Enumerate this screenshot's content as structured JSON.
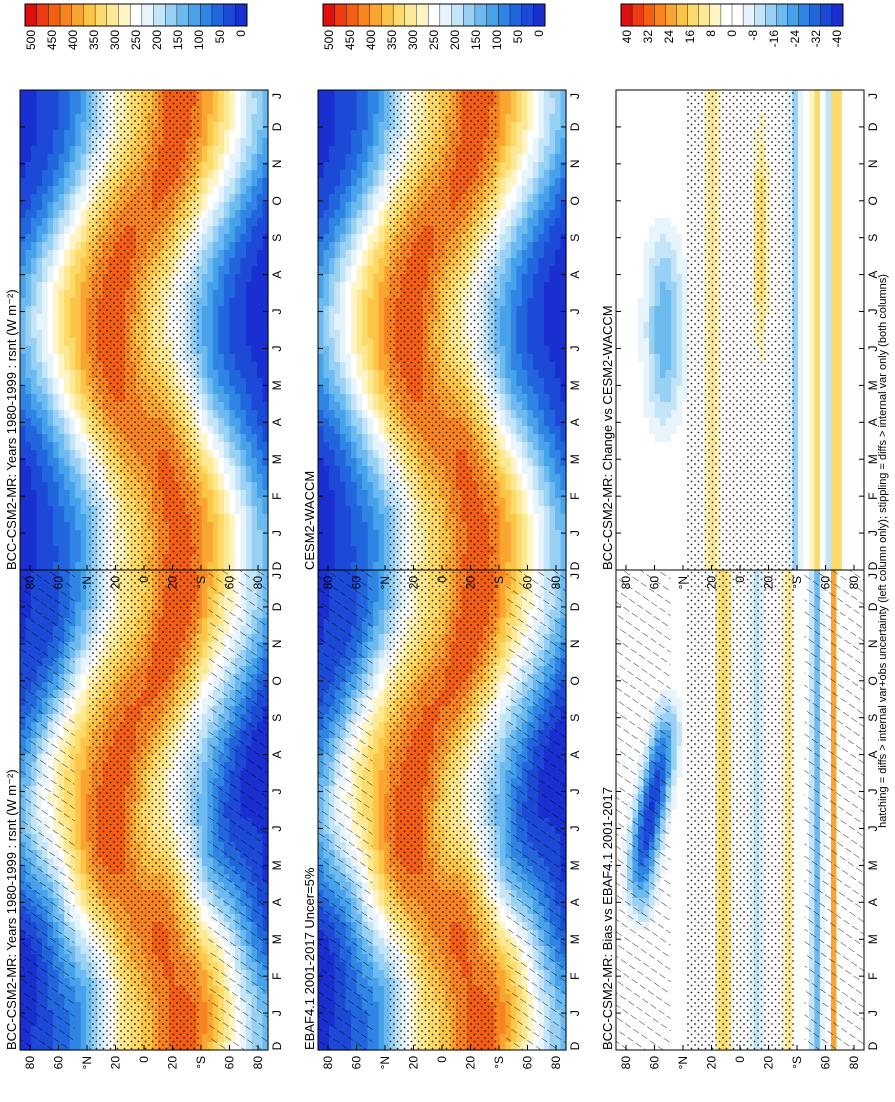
{
  "figure": {
    "footnote": "hatching = diffs > internal var+obs uncertainty (left column only); stippling = diffs > internal var only (both columns)"
  },
  "colors": {
    "abs_scale": [
      "#e01010",
      "#ef3a12",
      "#f45f14",
      "#f78420",
      "#faa531",
      "#fcc548",
      "#fddb6b",
      "#fde993",
      "#fef4c4",
      "#ffffff",
      "#e8f4fc",
      "#c4e4f8",
      "#99d1f4",
      "#6cbaef",
      "#47a2ea",
      "#2f84e4",
      "#2266dd",
      "#1c49d6",
      "#1a2fd0"
    ],
    "diff_scale": [
      "#e01010",
      "#ef3a12",
      "#f45f14",
      "#f78420",
      "#faa531",
      "#fcc548",
      "#fddb6b",
      "#fde993",
      "#fef4c4",
      "#ffffff",
      "#ffffff",
      "#e8f4fc",
      "#c4e4f8",
      "#99d1f4",
      "#6cbaef",
      "#47a2ea",
      "#2f84e4",
      "#2266dd",
      "#1c49d6",
      "#1a2fd0"
    ]
  },
  "chart_data": [
    {
      "type": "heatmap",
      "title": "BCC-CSM2-MR: Years 1980-1999 : rsnt (W m⁻²)",
      "months": [
        "D",
        "J",
        "F",
        "M",
        "A",
        "M",
        "J",
        "J",
        "A",
        "S",
        "O",
        "N",
        "D",
        "J"
      ],
      "lat_ticks": [
        "80",
        "60",
        "°N",
        "20",
        "0",
        "20",
        "°S",
        "60",
        "80"
      ],
      "colorbar": [
        "500",
        "450",
        "400",
        "350",
        "300",
        "250",
        "200",
        "150",
        "100",
        "50",
        "0"
      ],
      "field": "abs",
      "hatching": true,
      "stippling": true
    },
    {
      "type": "heatmap",
      "title": "BCC-CSM2-MR: Years 1980-1999 : rsnt (W m⁻²)",
      "months": [
        "D",
        "J",
        "F",
        "M",
        "A",
        "M",
        "J",
        "J",
        "A",
        "S",
        "O",
        "N",
        "D",
        "J"
      ],
      "lat_ticks": [
        "80",
        "60",
        "°N",
        "20",
        "0",
        "20",
        "°S",
        "60",
        "80"
      ],
      "colorbar": [
        "500",
        "450",
        "400",
        "350",
        "300",
        "250",
        "200",
        "150",
        "100",
        "50",
        "0"
      ],
      "field": "abs",
      "hatching": false,
      "stippling": true
    },
    {
      "type": "heatmap",
      "title": "EBAF4.1 2001-2017 Uncer=5%",
      "months": [
        "D",
        "J",
        "F",
        "M",
        "A",
        "M",
        "J",
        "J",
        "A",
        "S",
        "O",
        "N",
        "D",
        "J"
      ],
      "lat_ticks": [
        "80",
        "60",
        "°N",
        "20",
        "0",
        "20",
        "°S",
        "60",
        "80"
      ],
      "colorbar": [
        "500",
        "450",
        "400",
        "350",
        "300",
        "250",
        "200",
        "150",
        "100",
        "50",
        "0"
      ],
      "field": "abs",
      "hatching": true,
      "stippling": true
    },
    {
      "type": "heatmap",
      "title": "CESM2-WACCM",
      "months": [
        "D",
        "J",
        "F",
        "M",
        "A",
        "M",
        "J",
        "J",
        "A",
        "S",
        "O",
        "N",
        "D",
        "J"
      ],
      "lat_ticks": [
        "80",
        "60",
        "°N",
        "20",
        "0",
        "20",
        "°S",
        "60",
        "80"
      ],
      "colorbar": [
        "500",
        "450",
        "400",
        "350",
        "300",
        "250",
        "200",
        "150",
        "100",
        "50",
        "0"
      ],
      "field": "abs",
      "hatching": false,
      "stippling": true
    },
    {
      "type": "heatmap",
      "title": "BCC-CSM2-MR: Bias vs EBAF4.1 2001-2017",
      "months": [
        "D",
        "J",
        "F",
        "M",
        "A",
        "M",
        "J",
        "J",
        "A",
        "S",
        "O",
        "N",
        "D",
        "J"
      ],
      "lat_ticks": [
        "80",
        "60",
        "°N",
        "20",
        "0",
        "20",
        "°S",
        "60",
        "80"
      ],
      "colorbar": [
        "40",
        "32",
        "24",
        "16",
        "8",
        "0",
        "-8",
        "-16",
        "-24",
        "-32",
        "-40"
      ],
      "field": "bias",
      "hatching": true,
      "stippling": true
    },
    {
      "type": "heatmap",
      "title": "BCC-CSM2-MR: Change vs CESM2-WACCM",
      "months": [
        "D",
        "J",
        "F",
        "M",
        "A",
        "M",
        "J",
        "J",
        "A",
        "S",
        "O",
        "N",
        "D",
        "J"
      ],
      "lat_ticks": [
        "80",
        "60",
        "°N",
        "20",
        "0",
        "20",
        "°S",
        "60",
        "80"
      ],
      "colorbar": [
        "40",
        "32",
        "24",
        "16",
        "8",
        "0",
        "-8",
        "-16",
        "-24",
        "-32",
        "-40"
      ],
      "field": "change",
      "hatching": false,
      "stippling": true
    }
  ]
}
